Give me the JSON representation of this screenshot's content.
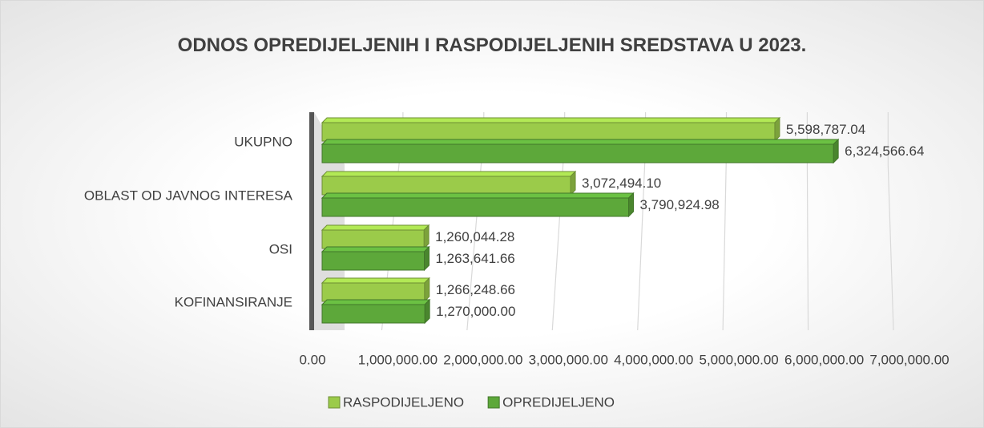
{
  "chart_data": {
    "type": "bar3d_horizontal",
    "title": "ODNOS OPREDIJELJENIH I RASPODIJELJENIH SREDSTAVA U 2023.",
    "categories": [
      "UKUPNO",
      "OBLAST OD JAVNOG INTERESA",
      "OSI",
      "KOFINANSIRANJE"
    ],
    "series": [
      {
        "name": "RASPODIJELJENO",
        "color": "#9bcb4a",
        "values": [
          5598787.04,
          3072494.1,
          1260044.28,
          1266248.66
        ],
        "value_labels": [
          "5,598,787.04",
          "3,072,494.10",
          "1,260,044.28",
          "1,266,248.66"
        ]
      },
      {
        "name": "OPREDIJELJENO",
        "color": "#5da83a",
        "values": [
          6324566.64,
          3790924.98,
          1263641.66,
          1270000.0
        ],
        "value_labels": [
          "6,324,566.64",
          "3,790,924.98",
          "1,263,641.66",
          "1,270,000.00"
        ]
      }
    ],
    "xlim": [
      0,
      7000000
    ],
    "xticks": [
      {
        "value": 0,
        "label": "0.00"
      },
      {
        "value": 1000000,
        "label": "1,000,000.00"
      },
      {
        "value": 2000000,
        "label": "2,000,000.00"
      },
      {
        "value": 3000000,
        "label": "3,000,000.00"
      },
      {
        "value": 4000000,
        "label": "4,000,000.00"
      },
      {
        "value": 5000000,
        "label": "5,000,000.00"
      },
      {
        "value": 6000000,
        "label": "6,000,000.00"
      },
      {
        "value": 7000000,
        "label": "7,000,000.00"
      }
    ],
    "grid": true,
    "legend": "bottom"
  }
}
